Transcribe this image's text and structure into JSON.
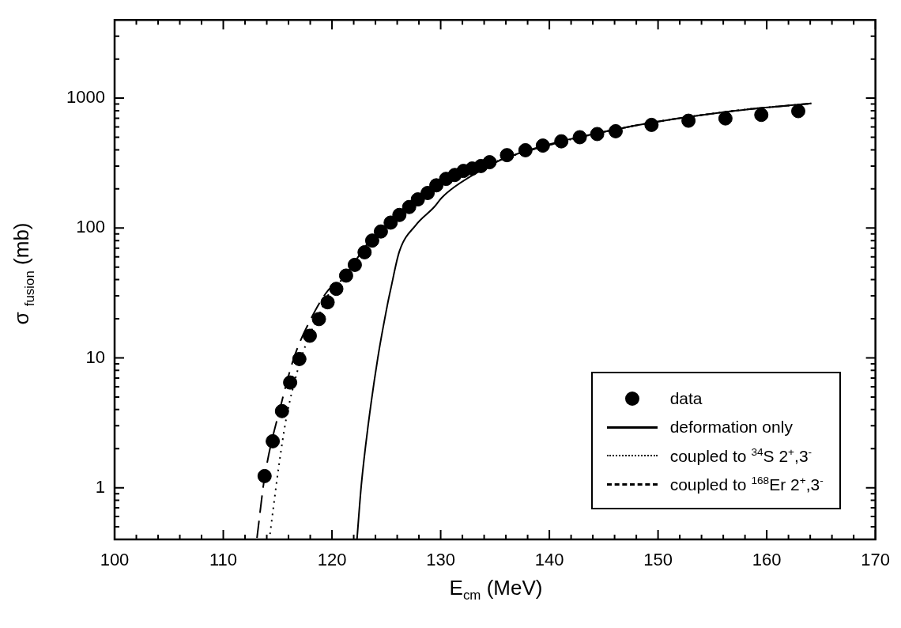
{
  "chart_data": {
    "type": "scatter",
    "xlabel": "E$_{cm}$  (MeV)",
    "ylabel": "σ $_{fusion}$ (mb)",
    "log": "y",
    "xlim": [
      100,
      170
    ],
    "xticks": [
      100,
      {
        "value": 102,
        "label": null
      },
      {
        "value": 104,
        "label": null
      },
      {
        "value": 106,
        "label": null
      },
      {
        "value": 108,
        "label": null
      },
      110,
      {
        "value": 112,
        "label": null
      },
      {
        "value": 114,
        "label": null
      },
      {
        "value": 116,
        "label": null
      },
      {
        "value": 118,
        "label": null
      },
      120,
      {
        "value": 122,
        "label": null
      },
      {
        "value": 124,
        "label": null
      },
      {
        "value": 126,
        "label": null
      },
      {
        "value": 128,
        "label": null
      },
      130,
      {
        "value": 132,
        "label": null
      },
      {
        "value": 134,
        "label": null
      },
      {
        "value": 136,
        "label": null
      },
      {
        "value": 138,
        "label": null
      },
      140,
      {
        "value": 142,
        "label": null
      },
      {
        "value": 144,
        "label": null
      },
      {
        "value": 146,
        "label": null
      },
      {
        "value": 148,
        "label": null
      },
      150,
      {
        "value": 152,
        "label": null
      },
      {
        "value": 154,
        "label": null
      },
      {
        "value": 156,
        "label": null
      },
      {
        "value": 158,
        "label": null
      },
      160,
      {
        "value": 162,
        "label": null
      },
      {
        "value": 164,
        "label": null
      },
      {
        "value": 166,
        "label": null
      },
      {
        "value": 168,
        "label": null
      },
      170
    ],
    "ylim": [
      0.4,
      4000
    ],
    "yticks": [
      {
        "value": 0.5,
        "label": null
      },
      {
        "value": 0.6,
        "label": null
      },
      {
        "value": 0.7,
        "label": null
      },
      {
        "value": 0.8,
        "label": null
      },
      {
        "value": 0.9,
        "label": null
      },
      1,
      {
        "value": 2,
        "label": null
      },
      {
        "value": 3,
        "label": null
      },
      {
        "value": 4,
        "label": null
      },
      {
        "value": 5,
        "label": null
      },
      {
        "value": 6,
        "label": null
      },
      {
        "value": 7,
        "label": null
      },
      {
        "value": 8,
        "label": null
      },
      {
        "value": 9,
        "label": null
      },
      10,
      {
        "value": 20,
        "label": null
      },
      {
        "value": 30,
        "label": null
      },
      {
        "value": 40,
        "label": null
      },
      {
        "value": 50,
        "label": null
      },
      {
        "value": 60,
        "label": null
      },
      {
        "value": 70,
        "label": null
      },
      {
        "value": 80,
        "label": null
      },
      {
        "value": 90,
        "label": null
      },
      100,
      {
        "value": 200,
        "label": null
      },
      {
        "value": 300,
        "label": null
      },
      {
        "value": 400,
        "label": null
      },
      {
        "value": 500,
        "label": null
      },
      {
        "value": 600,
        "label": null
      },
      {
        "value": 700,
        "label": null
      },
      {
        "value": 800,
        "label": null
      },
      {
        "value": 900,
        "label": null
      },
      1000,
      {
        "value": 2000,
        "label": null
      },
      {
        "value": 3000,
        "label": null
      }
    ],
    "grid": false,
    "legend": "bottom right",
    "series": [
      {
        "name": "data",
        "marker": "circle",
        "color": "#000000",
        "x": [
          113.8,
          114.55,
          115.4,
          116.15,
          117.0,
          117.96,
          118.8,
          119.6,
          120.4,
          121.3,
          122.1,
          123.0,
          123.7,
          124.5,
          125.4,
          126.2,
          127.1,
          127.9,
          128.8,
          129.6,
          130.5,
          131.3,
          132.1,
          132.9,
          133.7,
          134.5,
          136.1,
          137.8,
          139.4,
          141.1,
          142.8,
          144.4,
          146.1,
          149.4,
          152.8,
          156.2,
          159.5,
          162.9
        ],
        "values": [
          1.23,
          2.28,
          3.89,
          6.46,
          9.8,
          14.8,
          19.9,
          26.8,
          34,
          43,
          52,
          65,
          80,
          94,
          110,
          126,
          145,
          166,
          186,
          213,
          239,
          256,
          275,
          287,
          300,
          321,
          364,
          397,
          431,
          465,
          500,
          529,
          556,
          622,
          670,
          698,
          743,
          794
        ]
      },
      {
        "name": "deformation only",
        "type": "line",
        "marker": "none",
        "line_style": "solid",
        "color": "#000000",
        "x": [
          122.3,
          122.7,
          123.3,
          124.2,
          125.1,
          125.4,
          126.2,
          127.7,
          129.4,
          130.1,
          131.3,
          134.1,
          136.0,
          146.8,
          157.1,
          164.1
        ],
        "values": [
          0.4,
          1.05,
          2.9,
          9.8,
          25.6,
          33.7,
          66,
          105,
          145,
          171,
          208,
          290,
          347,
          590,
          800,
          910
        ]
      },
      {
        "name": "coupled to $^{34}$S 2$^{+}$,3$^{-}$",
        "type": "line",
        "marker": "none",
        "line_style": "dotted",
        "color": "#000000",
        "x": [
          114.3,
          115.1,
          115.8,
          116.8,
          117.8,
          118.7,
          119.6,
          120.9,
          123.3,
          125.7,
          128.1,
          130.5,
          134.1,
          136.0,
          146.8,
          157.1,
          164.1
        ],
        "values": [
          0.44,
          1.45,
          3.44,
          7.8,
          14.1,
          20.3,
          30,
          40,
          76,
          120,
          178,
          234,
          300,
          347,
          590,
          800,
          910
        ]
      },
      {
        "name": "coupled to $^{168}$Er 2$^{+}$,3$^{-}$",
        "type": "line",
        "marker": "none",
        "line_style": "dashed",
        "color": "#000000",
        "x": [
          113.1,
          113.8,
          115.35,
          116.55,
          118.0,
          119.7,
          120.9,
          123.3,
          125.7,
          128.1,
          130.5,
          134.1,
          136.0,
          146.8,
          157.1,
          164.1
        ],
        "values": [
          0.41,
          1.2,
          4.5,
          10.3,
          19.5,
          33.6,
          40,
          76,
          120,
          178,
          234,
          300,
          347,
          590,
          800,
          910
        ]
      }
    ]
  }
}
